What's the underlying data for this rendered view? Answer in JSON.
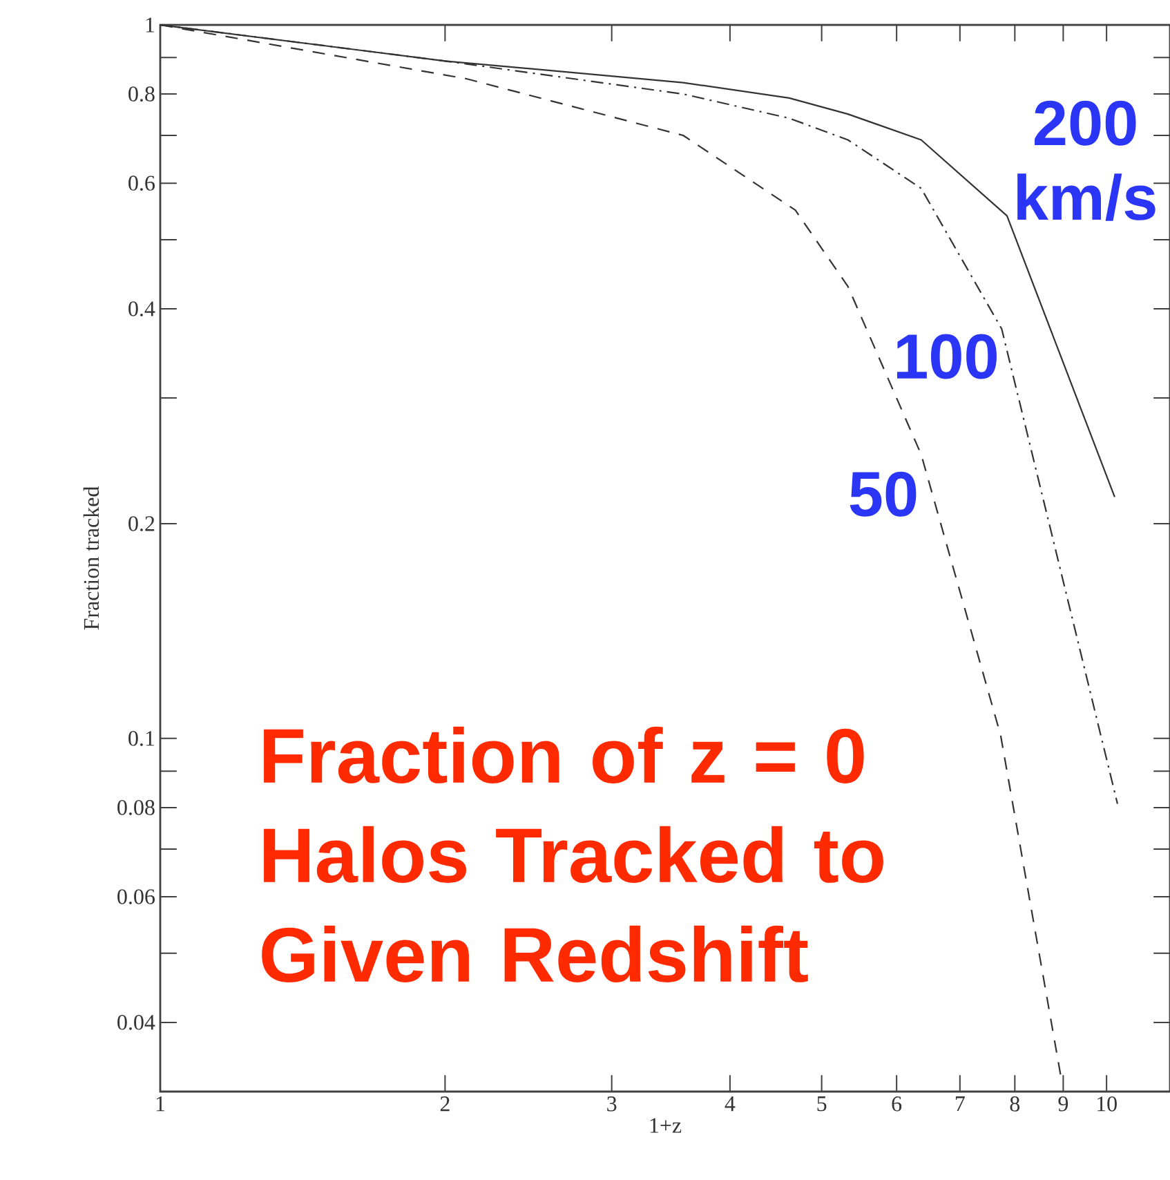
{
  "chart_data": {
    "type": "line",
    "xlabel": "1+z",
    "ylabel": "Fraction tracked",
    "log": "xy",
    "marker": "none",
    "grid": false,
    "xlim": [
      1,
      11.67
    ],
    "ylim": [
      0.032,
      1
    ],
    "xticks": [
      1,
      2,
      3,
      4,
      5,
      6,
      7,
      8,
      9,
      10
    ],
    "yticks": [
      {
        "value": 0.04,
        "label": "0.04"
      },
      {
        "value": 0.05,
        "label": null
      },
      {
        "value": 0.06,
        "label": "0.06"
      },
      {
        "value": 0.07,
        "label": null
      },
      {
        "value": 0.08,
        "label": "0.08"
      },
      {
        "value": 0.09,
        "label": null
      },
      {
        "value": 0.1,
        "label": "0.1"
      },
      {
        "value": 0.2,
        "label": "0.2"
      },
      {
        "value": 0.3,
        "label": null
      },
      {
        "value": 0.4,
        "label": "0.4"
      },
      {
        "value": 0.5,
        "label": null
      },
      {
        "value": 0.6,
        "label": "0.6"
      },
      {
        "value": 0.7,
        "label": null
      },
      {
        "value": 0.8,
        "label": "0.8"
      },
      {
        "value": 0.9,
        "label": null
      },
      1
    ],
    "series": [
      {
        "name": "200 km/s",
        "color": "#333333",
        "line_style": "solid",
        "x": [
          1,
          2,
          3.57,
          4.62,
          5.33,
          6.37,
          7.85,
          10.2
        ],
        "values": [
          1,
          0.89,
          0.83,
          0.79,
          0.75,
          0.69,
          0.54,
          0.218
        ]
      },
      {
        "name": "100",
        "color": "#333333",
        "line_style": "dashdot",
        "x": [
          1,
          2,
          3.57,
          4.62,
          5.33,
          6.37,
          7.75,
          10.27
        ],
        "values": [
          1,
          0.89,
          0.8,
          0.74,
          0.69,
          0.59,
          0.375,
          0.081
        ]
      },
      {
        "name": "50",
        "color": "#333333",
        "line_style": "dashed",
        "x": [
          1,
          2.11,
          3.57,
          4.69,
          5.33,
          6.37,
          7.73,
          8.97
        ],
        "values": [
          1,
          0.84,
          0.7,
          0.55,
          0.43,
          0.25,
          0.101,
          0.033
        ]
      }
    ],
    "annotations": [
      "Fraction of z = 0 Halos Tracked to Given Redshift"
    ]
  }
}
